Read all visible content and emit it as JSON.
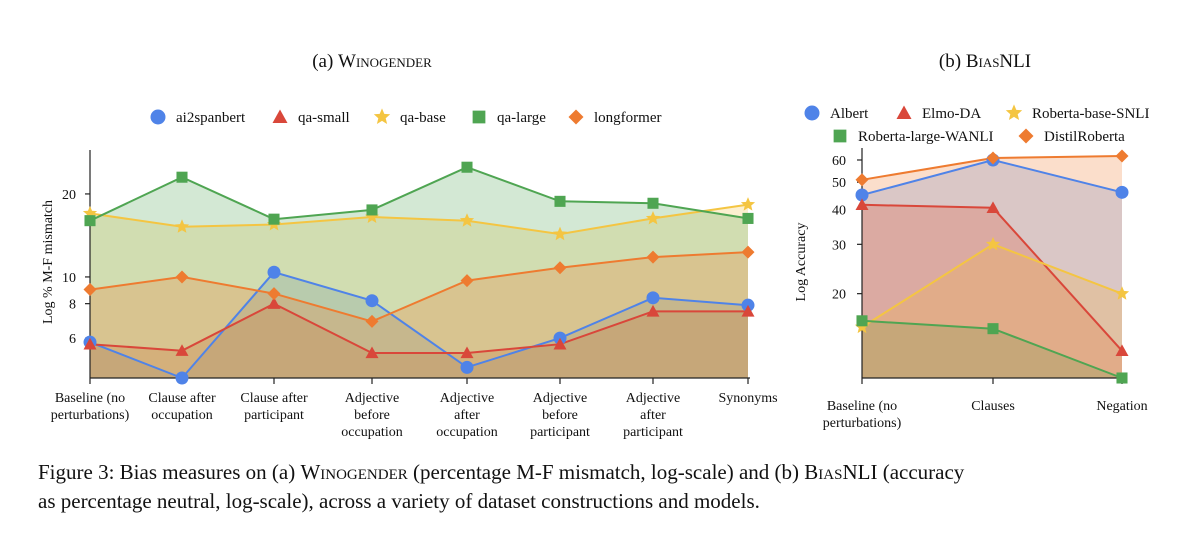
{
  "colors": {
    "ai2spanbert": "#4F83E8",
    "qa-small": "#D9473A",
    "qa-base": "#F4C542",
    "qa-large": "#4FA552",
    "longformer": "#EE7B30",
    "Albert": "#4F83E8",
    "Elmo-DA": "#D9473A",
    "Roberta-base-SNLI": "#F4C542",
    "Roberta-large-WANLI": "#4FA552",
    "DistilRoberta": "#EE7B30"
  },
  "chart_data": [
    {
      "type": "area",
      "title": "(a) Winogender",
      "title_prefix": "(a) ",
      "title_name": "Winogender",
      "ylabel": "Log % M-F mismatch",
      "yscale": "log",
      "ylim": [
        4.3,
        27
      ],
      "yticks": [
        6,
        8,
        10,
        20
      ],
      "grid": false,
      "legend": "top",
      "categories": [
        [
          "Baseline (no",
          "perturbations)"
        ],
        [
          "Clause after",
          "occupation"
        ],
        [
          "Clause after",
          "participant"
        ],
        [
          "Adjective",
          "before",
          "occupation"
        ],
        [
          "Adjective",
          "after",
          "occupation"
        ],
        [
          "Adjective",
          "before",
          "participant"
        ],
        [
          "Adjective",
          "after",
          "participant"
        ],
        [
          "Synonyms"
        ]
      ],
      "series": [
        {
          "name": "ai2spanbert",
          "marker": "circle",
          "values": [
            5.8,
            4.3,
            10.4,
            8.2,
            4.7,
            6.0,
            8.4,
            7.9
          ]
        },
        {
          "name": "qa-small",
          "marker": "triangle",
          "values": [
            5.7,
            5.4,
            8.0,
            5.3,
            5.3,
            5.7,
            7.5,
            7.5
          ]
        },
        {
          "name": "qa-base",
          "marker": "star",
          "values": [
            17.0,
            15.2,
            15.5,
            16.5,
            16.0,
            14.3,
            16.3,
            18.3
          ]
        },
        {
          "name": "qa-large",
          "marker": "square",
          "values": [
            16.0,
            23.0,
            16.2,
            17.5,
            25.0,
            18.8,
            18.5,
            16.3
          ]
        },
        {
          "name": "longformer",
          "marker": "diamond",
          "values": [
            9.0,
            10.0,
            8.7,
            6.9,
            9.7,
            10.8,
            11.8,
            12.3
          ]
        }
      ]
    },
    {
      "type": "area",
      "title": "(b) BiasNLI",
      "title_prefix": "(b) ",
      "title_name": "BiasNLI",
      "ylabel": "Log Accuracy",
      "yscale": "log",
      "ylim": [
        10,
        62
      ],
      "yticks": [
        20,
        30,
        40,
        50,
        60
      ],
      "grid": false,
      "legend": "top",
      "categories": [
        [
          "Baseline (no",
          "perturbations)"
        ],
        [
          "Clauses"
        ],
        [
          "Negation"
        ]
      ],
      "series": [
        {
          "name": "Albert",
          "marker": "circle",
          "values": [
            45,
            60,
            46
          ]
        },
        {
          "name": "Elmo-DA",
          "marker": "triangle",
          "values": [
            41.5,
            40.5,
            12.5
          ]
        },
        {
          "name": "Roberta-base-SNLI",
          "marker": "star",
          "values": [
            15.2,
            30.0,
            20.0
          ]
        },
        {
          "name": "Roberta-large-WANLI",
          "marker": "square",
          "values": [
            16.0,
            15.0,
            10.0
          ]
        },
        {
          "name": "DistilRoberta",
          "marker": "diamond",
          "values": [
            51.0,
            61.0,
            62.0
          ]
        }
      ]
    }
  ],
  "caption": {
    "line1_a": "Figure 3: Bias measures on (a) ",
    "line1_name1": "Winogender",
    "line1_b": " (percentage M-F mismatch, log-scale) and (b) ",
    "line1_name2": "BiasNLI",
    "line1_c": " (accuracy",
    "line2": "as percentage neutral, log-scale), across a variety of dataset constructions and models."
  }
}
